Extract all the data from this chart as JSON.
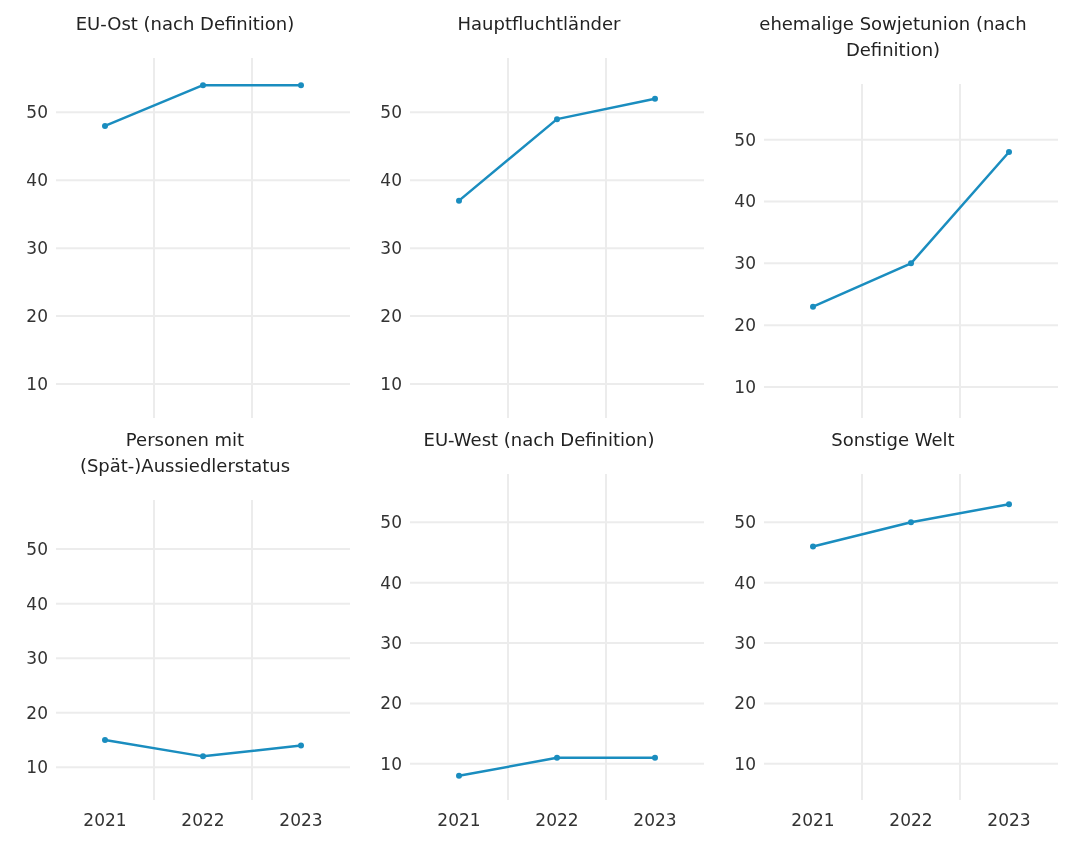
{
  "chart_data": [
    {
      "type": "line",
      "title": "EU-Ost (nach Definition)",
      "categories": [
        null,
        null,
        null
      ],
      "series": [
        {
          "color": "#1a8dbf",
          "values": [
            48,
            54,
            54
          ]
        }
      ],
      "ylim": [
        5,
        58
      ],
      "yticks": [
        10,
        20,
        30,
        40,
        50
      ],
      "grid": true,
      "marker": "circle",
      "tick_labels": "y"
    },
    {
      "type": "line",
      "title": "Hauptfluchtländer",
      "categories": [
        null,
        null,
        null
      ],
      "series": [
        {
          "color": "#1a8dbf",
          "values": [
            37,
            49,
            52
          ]
        }
      ],
      "ylim": [
        5,
        58
      ],
      "yticks": [
        10,
        20,
        30,
        40,
        50
      ],
      "grid": true,
      "marker": "circle",
      "tick_labels": "y"
    },
    {
      "type": "line",
      "title": "ehemalige Sowjetunion (nach Definition)",
      "categories": [
        null,
        null,
        null
      ],
      "series": [
        {
          "color": "#1a8dbf",
          "values": [
            23,
            30,
            48
          ]
        }
      ],
      "ylim": [
        5,
        59
      ],
      "yticks": [
        10,
        20,
        30,
        40,
        50
      ],
      "grid": true,
      "marker": "circle",
      "tick_labels": "y"
    },
    {
      "type": "line",
      "title": "Personen mit (Spät-)Aussiedlerstatus",
      "categories": [
        "2021",
        "2022",
        "2023"
      ],
      "series": [
        {
          "color": "#1a8dbf",
          "values": [
            15,
            12,
            14
          ]
        }
      ],
      "ylim": [
        4,
        59
      ],
      "yticks": [
        10,
        20,
        30,
        40,
        50
      ],
      "grid": true,
      "marker": "circle"
    },
    {
      "type": "line",
      "title": "EU-West (nach Definition)",
      "categories": [
        "2021",
        "2022",
        "2023"
      ],
      "series": [
        {
          "color": "#1a8dbf",
          "values": [
            8,
            11,
            11
          ]
        }
      ],
      "ylim": [
        4,
        58
      ],
      "yticks": [
        10,
        20,
        30,
        40,
        50
      ],
      "grid": true,
      "marker": "circle"
    },
    {
      "type": "line",
      "title": "Sonstige Welt",
      "categories": [
        "2021",
        "2022",
        "2023"
      ],
      "series": [
        {
          "color": "#1a8dbf",
          "values": [
            46,
            50,
            53
          ]
        }
      ],
      "ylim": [
        4,
        58
      ],
      "yticks": [
        10,
        20,
        30,
        40,
        50
      ],
      "grid": true,
      "marker": "circle"
    }
  ]
}
